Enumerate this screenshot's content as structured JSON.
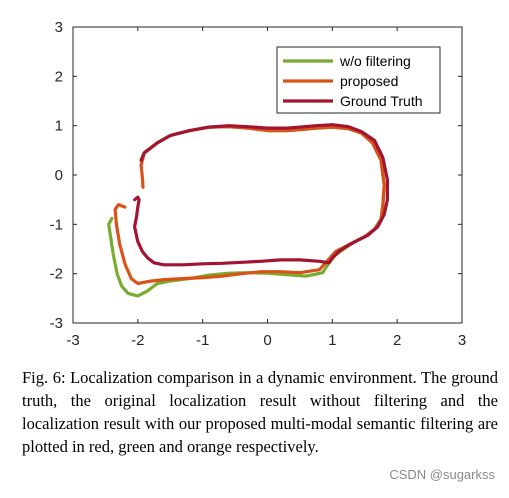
{
  "chart_data": {
    "type": "line",
    "title": "",
    "xlabel": "",
    "ylabel": "",
    "xlim": [
      -3,
      3
    ],
    "ylim": [
      -3,
      3
    ],
    "xticks": [
      -3,
      -2,
      -1,
      0,
      1,
      2,
      3
    ],
    "yticks": [
      -3,
      -2,
      -1,
      0,
      1,
      2,
      3
    ],
    "grid": false,
    "legend": "top-right",
    "series": [
      {
        "name": "w/o filtering",
        "color": "#77ac30",
        "x": [
          -1.95,
          -1.9,
          -1.7,
          -1.5,
          -1.2,
          -0.9,
          -0.6,
          -0.3,
          0,
          0.3,
          0.5,
          0.75,
          1.0,
          1.25,
          1.45,
          1.62,
          1.75,
          1.8,
          1.78,
          1.75,
          1.65,
          1.5,
          1.35,
          1.2,
          1.05,
          0.95,
          0.85,
          0.6,
          0.3,
          0,
          -0.3,
          -0.6,
          -0.9,
          -1.2,
          -1.5,
          -1.7,
          -1.85,
          -2.0,
          -2.15,
          -2.25,
          -2.32,
          -2.38,
          -2.42,
          -2.45,
          -2.4
        ],
        "y": [
          0.3,
          0.45,
          0.65,
          0.8,
          0.9,
          0.97,
          0.98,
          0.95,
          0.9,
          0.9,
          0.92,
          0.95,
          0.97,
          0.94,
          0.85,
          0.65,
          0.3,
          -0.2,
          -0.6,
          -0.9,
          -1.1,
          -1.25,
          -1.35,
          -1.48,
          -1.62,
          -1.78,
          -1.98,
          -2.05,
          -2.02,
          -1.99,
          -1.98,
          -1.99,
          -2.03,
          -2.1,
          -2.15,
          -2.2,
          -2.35,
          -2.45,
          -2.4,
          -2.25,
          -2.0,
          -1.6,
          -1.25,
          -1.0,
          -0.88
        ]
      },
      {
        "name": "proposed",
        "color": "#d95319",
        "x": [
          -1.92,
          -1.93,
          -1.95,
          -1.9,
          -1.7,
          -1.5,
          -1.2,
          -0.9,
          -0.6,
          -0.3,
          0,
          0.3,
          0.5,
          0.75,
          1.0,
          1.25,
          1.45,
          1.62,
          1.75,
          1.8,
          1.78,
          1.75,
          1.65,
          1.5,
          1.35,
          1.2,
          1.05,
          0.95,
          0.8,
          0.5,
          0.2,
          -0.1,
          -0.4,
          -0.7,
          -1.0,
          -1.3,
          -1.6,
          -1.8,
          -2.0,
          -2.1,
          -2.2,
          -2.28,
          -2.33,
          -2.35,
          -2.3,
          -2.2
        ],
        "y": [
          -0.25,
          -0.05,
          0.2,
          0.45,
          0.65,
          0.8,
          0.9,
          0.97,
          0.98,
          0.95,
          0.9,
          0.9,
          0.92,
          0.95,
          0.97,
          0.94,
          0.85,
          0.65,
          0.3,
          -0.2,
          -0.6,
          -0.9,
          -1.1,
          -1.25,
          -1.35,
          -1.45,
          -1.55,
          -1.7,
          -1.92,
          -1.98,
          -1.96,
          -1.96,
          -2.0,
          -2.05,
          -2.08,
          -2.1,
          -2.12,
          -2.15,
          -2.2,
          -2.1,
          -1.8,
          -1.4,
          -1.0,
          -0.7,
          -0.6,
          -0.65
        ]
      },
      {
        "name": "Ground Truth",
        "color": "#a2142f",
        "x": [
          -1.95,
          -1.9,
          -1.7,
          -1.5,
          -1.2,
          -0.9,
          -0.6,
          -0.3,
          0,
          0.3,
          0.5,
          0.75,
          1.0,
          1.25,
          1.45,
          1.65,
          1.78,
          1.85,
          1.85,
          1.8,
          1.7,
          1.55,
          1.4,
          1.25,
          1.1,
          1.0,
          0.95,
          0.8,
          0.5,
          0.2,
          -0.1,
          -0.4,
          -0.7,
          -1.0,
          -1.3,
          -1.6,
          -1.75,
          -1.85,
          -1.93,
          -2.0,
          -2.05,
          -2.02,
          -2.0,
          -1.98,
          -2.0,
          -2.05
        ],
        "y": [
          0.3,
          0.45,
          0.65,
          0.8,
          0.9,
          0.97,
          1.0,
          0.98,
          0.95,
          0.95,
          0.97,
          1.0,
          1.02,
          0.98,
          0.88,
          0.7,
          0.35,
          -0.1,
          -0.5,
          -0.8,
          -1.05,
          -1.22,
          -1.32,
          -1.42,
          -1.55,
          -1.68,
          -1.78,
          -1.75,
          -1.72,
          -1.72,
          -1.75,
          -1.77,
          -1.79,
          -1.8,
          -1.82,
          -1.82,
          -1.78,
          -1.68,
          -1.55,
          -1.35,
          -1.05,
          -0.85,
          -0.65,
          -0.5,
          -0.45,
          -0.5
        ]
      }
    ]
  },
  "caption": "Fig. 6: Localization comparison in a dynamic environment. The ground truth, the original localization result without filtering and the localization result with our proposed multi-modal semantic filtering are plotted in red, green and orange respectively.",
  "watermark": "CSDN @sugarkss"
}
